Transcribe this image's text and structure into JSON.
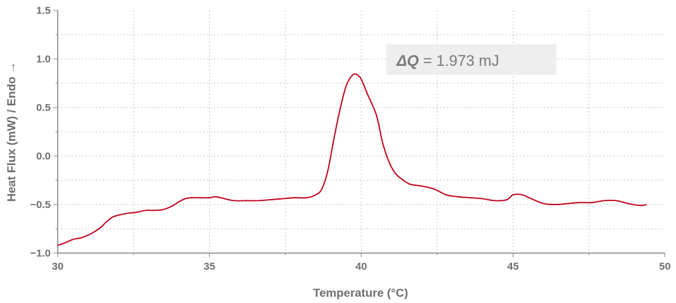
{
  "chart_data": {
    "type": "line",
    "xlabel": "Temperature (°C)",
    "ylabel": "Heat Flux (mW) / Endo →",
    "xlim": [
      30,
      50
    ],
    "ylim": [
      -1.0,
      1.5
    ],
    "x_ticks": [
      30,
      35,
      40,
      45,
      50
    ],
    "x_tick_labels": [
      "30",
      "35",
      "40",
      "45",
      "50"
    ],
    "y_ticks": [
      -1.0,
      -0.5,
      0.0,
      0.5,
      1.0,
      1.5
    ],
    "y_tick_labels": [
      "−1.0",
      "−0.5",
      "0.0",
      "0.5",
      "1.0",
      "1.5"
    ],
    "x_minor_step": 2.5,
    "y_minor_step": 0.25,
    "grid": true,
    "annotation": {
      "symbol": "ΔQ",
      "text": " = 1.973 mJ"
    },
    "colors": {
      "line": "#c0001a",
      "annotation_bg": "#eeeeee",
      "text": "#6e6e6e",
      "grid": "#c8c8c8"
    },
    "series": [
      {
        "x": [
          30.0,
          30.2,
          30.5,
          30.8,
          31.1,
          31.4,
          31.6,
          31.8,
          32.0,
          32.3,
          32.6,
          32.9,
          33.2,
          33.5,
          33.8,
          34.0,
          34.2,
          34.4,
          34.7,
          35.0,
          35.2,
          35.5,
          35.8,
          36.2,
          36.6,
          37.0,
          37.4,
          37.8,
          38.2,
          38.5,
          38.7,
          38.9,
          39.1,
          39.3,
          39.5,
          39.7,
          39.85,
          40.0,
          40.2,
          40.5,
          40.7,
          40.9,
          41.1,
          41.3,
          41.6,
          42.0,
          42.4,
          42.8,
          43.2,
          43.6,
          44.0,
          44.4,
          44.8,
          45.0,
          45.3,
          45.6,
          46.0,
          46.4,
          46.8,
          47.2,
          47.6,
          48.0,
          48.4,
          48.8,
          49.2,
          49.4
        ],
        "y": [
          -0.92,
          -0.9,
          -0.86,
          -0.84,
          -0.8,
          -0.74,
          -0.68,
          -0.63,
          -0.61,
          -0.59,
          -0.58,
          -0.56,
          -0.56,
          -0.55,
          -0.51,
          -0.47,
          -0.44,
          -0.43,
          -0.43,
          -0.43,
          -0.42,
          -0.44,
          -0.46,
          -0.46,
          -0.46,
          -0.45,
          -0.44,
          -0.43,
          -0.43,
          -0.4,
          -0.34,
          -0.15,
          0.18,
          0.48,
          0.72,
          0.83,
          0.84,
          0.79,
          0.64,
          0.42,
          0.14,
          -0.05,
          -0.17,
          -0.23,
          -0.29,
          -0.31,
          -0.34,
          -0.4,
          -0.42,
          -0.43,
          -0.44,
          -0.46,
          -0.45,
          -0.4,
          -0.4,
          -0.44,
          -0.49,
          -0.5,
          -0.49,
          -0.48,
          -0.48,
          -0.46,
          -0.46,
          -0.49,
          -0.51,
          -0.5
        ]
      }
    ]
  }
}
